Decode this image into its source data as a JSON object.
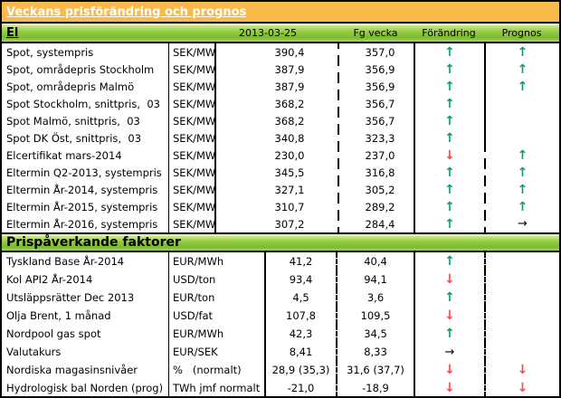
{
  "title": "Veckans prisförändring och prognos",
  "columns": {
    "current": "2013-03-25",
    "previous": "Fg vecka",
    "change": "Förändring",
    "forecast": "Prognos"
  },
  "arrows": {
    "up": "↑",
    "down": "↓",
    "flat": "→"
  },
  "colors": {
    "title_bar_bg": "#fbb84b",
    "section_bar_green": "#8cc63e",
    "arrow_up": "#00a85c",
    "arrow_down": "#ff4545",
    "arrow_flat": "#000000"
  },
  "sections": [
    {
      "name": "El",
      "rows": [
        {
          "label": "Spot, systempris",
          "unit": "SEK/MWh",
          "current": "390,4",
          "previous": "357,0",
          "change": "up",
          "forecast": "up",
          "forecast_divider": "solid"
        },
        {
          "label": "Spot, områdepris Stockholm",
          "unit": "SEK/MWh",
          "current": "387,9",
          "previous": "356,9",
          "change": "up",
          "forecast": "up",
          "forecast_divider": "solid"
        },
        {
          "label": "Spot, områdepris Malmö",
          "unit": "SEK/MWh",
          "current": "387,9",
          "previous": "356,9",
          "change": "up",
          "forecast": "up",
          "forecast_divider": "solid"
        },
        {
          "label": "Spot Stockholm, snittpris,  03",
          "unit": "SEK/MWh",
          "current": "368,2",
          "previous": "356,7",
          "change": "up",
          "forecast": "",
          "forecast_divider": "solid"
        },
        {
          "label": "Spot Malmö, snittpris,  03",
          "unit": "SEK/MWh",
          "current": "368,2",
          "previous": "356,7",
          "change": "up",
          "forecast": "",
          "forecast_divider": "solid"
        },
        {
          "label": "Spot DK Öst, snittpris,  03",
          "unit": "SEK/MWh",
          "current": "340,8",
          "previous": "323,3",
          "change": "up",
          "forecast": "",
          "forecast_divider": "solid"
        },
        {
          "label": "Elcertifikat mars-2014",
          "unit": "SEK/MWh",
          "current": "230,0",
          "previous": "237,0",
          "change": "down",
          "forecast": "up",
          "forecast_divider": "dashed"
        },
        {
          "label": "Eltermin Q2-2013, systempris",
          "unit": "SEK/MWh",
          "current": "345,5",
          "previous": "316,8",
          "change": "up",
          "forecast": "up",
          "forecast_divider": "dashed"
        },
        {
          "label": "Eltermin År-2014, systempris",
          "unit": "SEK/MWh",
          "current": "327,1",
          "previous": "305,2",
          "change": "up",
          "forecast": "up",
          "forecast_divider": "dashed"
        },
        {
          "label": "Eltermin År-2015, systempris",
          "unit": "SEK/MWh",
          "current": "310,7",
          "previous": "289,2",
          "change": "up",
          "forecast": "up",
          "forecast_divider": "dashed"
        },
        {
          "label": "Eltermin År-2016, systempris",
          "unit": "SEK/MWh",
          "current": "307,2",
          "previous": "284,4",
          "change": "up",
          "forecast": "flat",
          "forecast_divider": "dashed"
        }
      ]
    },
    {
      "name": "Prispåverkande faktorer",
      "rows": [
        {
          "label": "Tyskland Base År-2014",
          "unit": "EUR/MWh",
          "current": "41,2",
          "previous": "40,4",
          "change": "up",
          "forecast": "",
          "forecast_divider": "dashed"
        },
        {
          "label": "Kol API2 År-2014",
          "unit": "USD/ton",
          "current": "93,4",
          "previous": "94,1",
          "change": "down",
          "forecast": "",
          "forecast_divider": "dashed"
        },
        {
          "label": "Utsläppsrätter Dec 2013",
          "unit": "EUR/ton",
          "current": "4,5",
          "previous": "3,6",
          "change": "up",
          "forecast": "",
          "forecast_divider": "dashed"
        },
        {
          "label": "Olja Brent, 1 månad",
          "unit": "USD/fat",
          "current": "107,8",
          "previous": "109,5",
          "change": "down",
          "forecast": "",
          "forecast_divider": "dashed"
        },
        {
          "label": "Nordpool gas spot",
          "unit": "EUR/MWh",
          "current": "42,3",
          "previous": "34,5",
          "change": "up",
          "forecast": "",
          "forecast_divider": "dashed"
        },
        {
          "label": "Valutakurs",
          "unit": "EUR/SEK",
          "current": "8,41",
          "previous": "8,33",
          "change": "flat",
          "forecast": "",
          "forecast_divider": "dashed"
        },
        {
          "label": "Nordiska magasinsnivåer",
          "unit": "%   (normalt)",
          "current": "28,9 (35,3)",
          "previous": "31,6 (37,7)",
          "change": "down",
          "forecast": "down",
          "forecast_divider": "dashed"
        },
        {
          "label": "Hydrologisk bal Norden (prog)",
          "unit": "TWh jmf normalt",
          "current": "-21,0",
          "previous": "-18,9",
          "change": "down",
          "forecast": "down",
          "forecast_divider": "dashed"
        }
      ]
    }
  ]
}
